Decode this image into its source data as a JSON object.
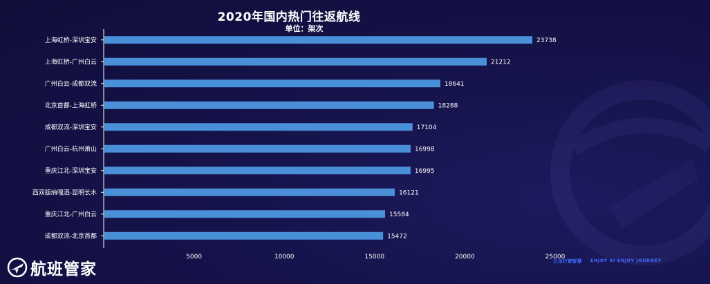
{
  "chart_data": {
    "type": "bar",
    "orientation": "horizontal",
    "title": "2020年国内热门往返航线",
    "subtitle": "单位：架次",
    "categories": [
      "上海虹桥-深圳宝安",
      "上海虹桥-广州白云",
      "广州白云-成都双流",
      "北京首都-上海虹桥",
      "成都双流-深圳宝安",
      "广州白云-杭州萧山",
      "重庆江北-深圳宝安",
      "西双版纳嘎洒-昆明长水",
      "重庆江北-广州白云",
      "成都双流-北京首都"
    ],
    "values": [
      23738,
      21212,
      18641,
      18288,
      17104,
      16998,
      16995,
      16121,
      15584,
      15472
    ],
    "xlim": [
      0,
      25000
    ],
    "xticks": [
      0,
      5000,
      10000,
      15000,
      20000,
      25000
    ],
    "xtick_labels": [
      "",
      "5000",
      "10000",
      "15000",
      "20000",
      "25000"
    ],
    "grid": false,
    "bar_color": "#4a90d9"
  },
  "branding": {
    "logo_text": "航班管家",
    "slogan_cn": "让出行更智慧",
    "slogan_en": "ENJOY AI  ENJOY JOURNEY"
  }
}
